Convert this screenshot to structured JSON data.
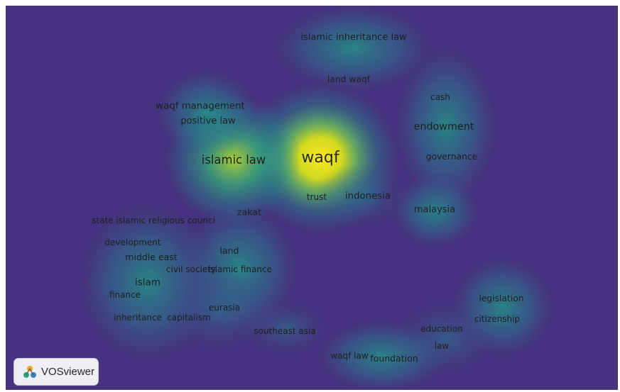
{
  "app": {
    "badge_label": "VOSviewer",
    "logo_icon": "vosviewer-logo-icon"
  },
  "colors": {
    "background": "#46327e",
    "hot": "#f1e51d",
    "mid": "#5ec962",
    "low": "#21918c"
  },
  "terms": [
    {
      "id": "waqf",
      "label": "waqf",
      "weight": 1.0
    },
    {
      "id": "islamic-law",
      "label": "islamic law",
      "weight": 0.55
    },
    {
      "id": "islamic-inheritance-law",
      "label": "islamic inheritance law",
      "weight": 0.28
    },
    {
      "id": "land-waqf",
      "label": "land waqf",
      "weight": 0.22
    },
    {
      "id": "cash",
      "label": "cash",
      "weight": 0.2
    },
    {
      "id": "endowment",
      "label": "endowment",
      "weight": 0.38
    },
    {
      "id": "governance",
      "label": "governance",
      "weight": 0.22
    },
    {
      "id": "waqf-management",
      "label": "waqf management",
      "weight": 0.3
    },
    {
      "id": "positive-law",
      "label": "positive law",
      "weight": 0.28
    },
    {
      "id": "trust",
      "label": "trust",
      "weight": 0.2
    },
    {
      "id": "indonesia",
      "label": "indonesia",
      "weight": 0.3
    },
    {
      "id": "malaysia",
      "label": "malaysia",
      "weight": 0.28
    },
    {
      "id": "zakat",
      "label": "zakat",
      "weight": 0.25
    },
    {
      "id": "state-islamic-religious-council",
      "label": "state islamic religious counci",
      "weight": 0.2
    },
    {
      "id": "development",
      "label": "development",
      "weight": 0.2
    },
    {
      "id": "middle-east",
      "label": "middle east",
      "weight": 0.24
    },
    {
      "id": "land",
      "label": "land",
      "weight": 0.24
    },
    {
      "id": "civil-society",
      "label": "civil society",
      "weight": 0.2
    },
    {
      "id": "islamic-finance",
      "label": "islamic finance",
      "weight": 0.2
    },
    {
      "id": "islam",
      "label": "islam",
      "weight": 0.32
    },
    {
      "id": "finance",
      "label": "finance",
      "weight": 0.2
    },
    {
      "id": "legislation",
      "label": "legislation",
      "weight": 0.22
    },
    {
      "id": "citizenship",
      "label": "citizenship",
      "weight": 0.2
    },
    {
      "id": "inheritance",
      "label": "inheritance",
      "weight": 0.2
    },
    {
      "id": "capitalism",
      "label": "capitalism",
      "weight": 0.2
    },
    {
      "id": "eurasia",
      "label": "eurasia",
      "weight": 0.2
    },
    {
      "id": "southeast-asia",
      "label": "southeast asia",
      "weight": 0.2
    },
    {
      "id": "education",
      "label": "education",
      "weight": 0.2
    },
    {
      "id": "law",
      "label": "law",
      "weight": 0.2
    },
    {
      "id": "waqf-law",
      "label": "waqf law",
      "weight": 0.2
    },
    {
      "id": "foundation",
      "label": "foundation",
      "weight": 0.24
    }
  ]
}
